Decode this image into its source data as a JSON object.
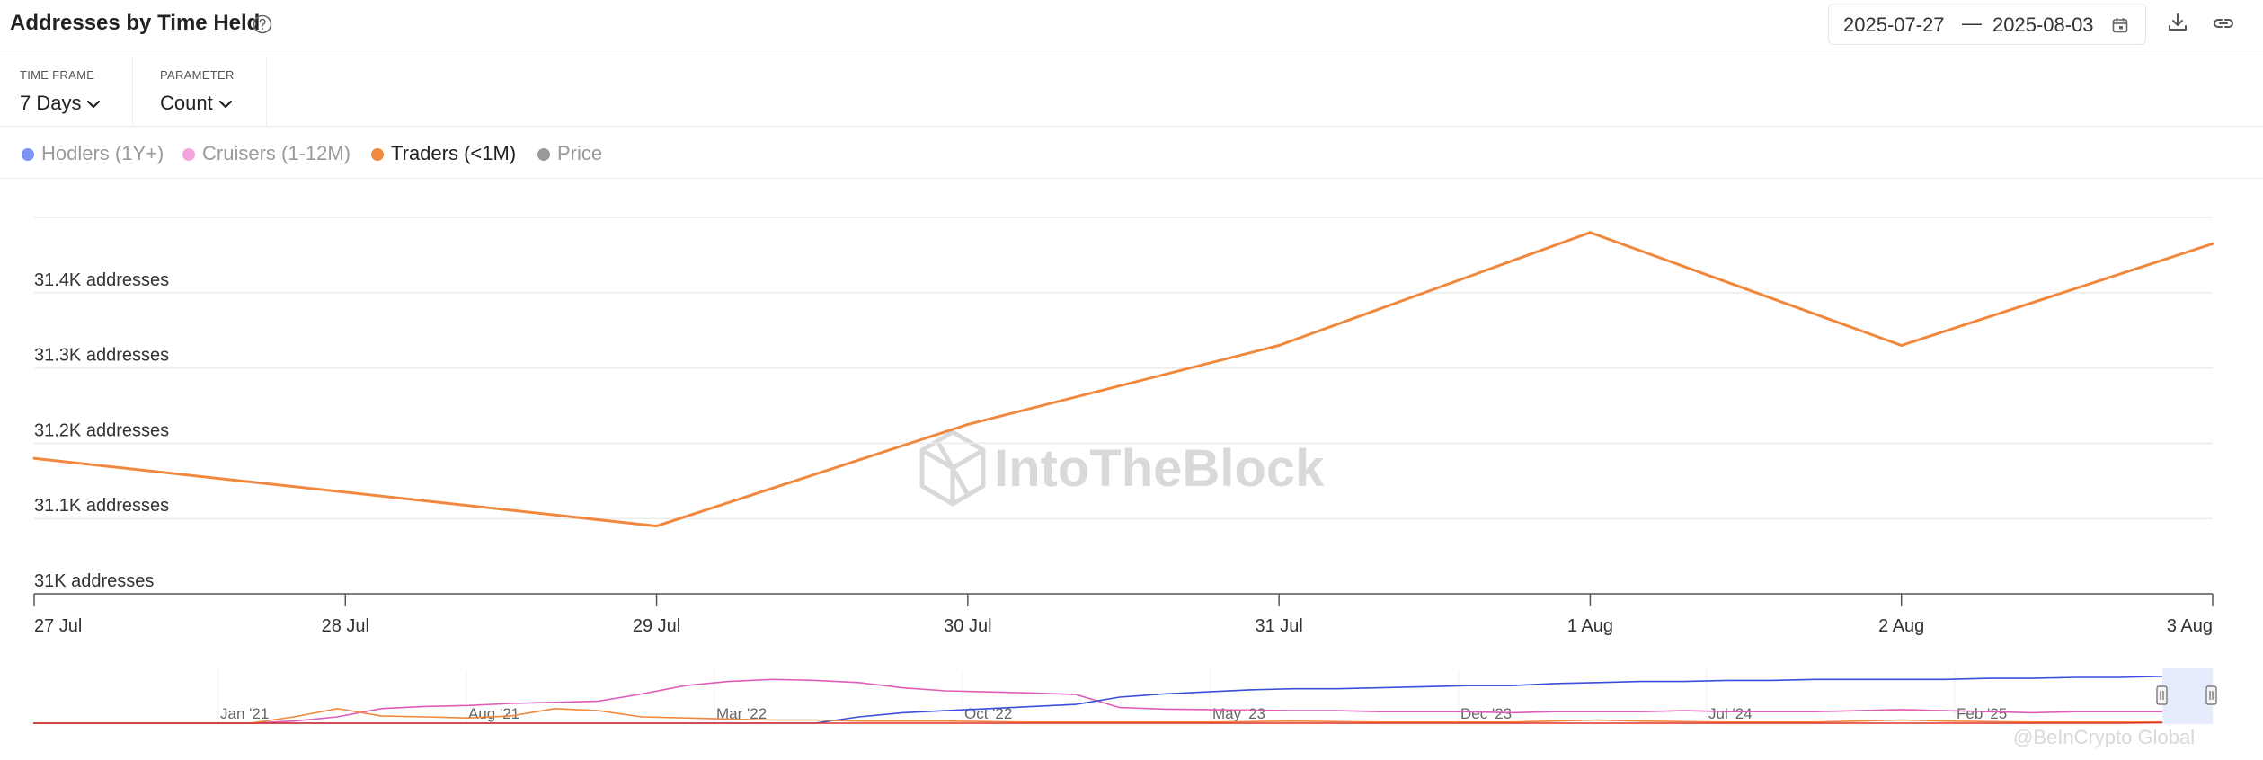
{
  "header": {
    "title": "Addresses by Time Held",
    "date_start": "2025-07-27",
    "date_separator": "—",
    "date_end": "2025-08-03"
  },
  "controls": {
    "time_frame_label": "TIME FRAME",
    "time_frame_value": "7 Days",
    "parameter_label": "PARAMETER",
    "parameter_value": "Count"
  },
  "legend": [
    {
      "label": "Hodlers (1Y+)",
      "color": "#7b93f5",
      "active": false
    },
    {
      "label": "Cruisers (1-12M)",
      "color": "#f2a5dc",
      "active": false
    },
    {
      "label": "Traders (<1M)",
      "color": "#f0883e",
      "active": true
    },
    {
      "label": "Price",
      "color": "#9a9a9a",
      "active": false
    }
  ],
  "watermark": "IntoTheBlock",
  "credit": "@BeInCrypto Global",
  "chart_data": {
    "type": "line",
    "title": "Addresses by Time Held",
    "x": [
      "27 Jul",
      "28 Jul",
      "29 Jul",
      "30 Jul",
      "31 Jul",
      "1 Aug",
      "2 Aug",
      "3 Aug"
    ],
    "series": [
      {
        "name": "Traders (<1M)",
        "color": "#f0883e",
        "points": [
          {
            "x": "27 Jul",
            "y": 31180
          },
          {
            "x": "29 Jul",
            "y": 31090
          },
          {
            "x": "30 Jul",
            "y": 31225
          },
          {
            "x": "31 Jul",
            "y": 31330
          },
          {
            "x": "1 Aug",
            "y": 31480
          },
          {
            "x": "2 Aug",
            "y": 31330
          },
          {
            "x": "3 Aug",
            "y": 31465
          }
        ]
      }
    ],
    "y_ticks": [
      {
        "value": 31000,
        "label": "31K addresses"
      },
      {
        "value": 31100,
        "label": "31.1K addresses"
      },
      {
        "value": 31200,
        "label": "31.2K addresses"
      },
      {
        "value": 31300,
        "label": "31.3K addresses"
      },
      {
        "value": 31400,
        "label": "31.4K addresses"
      }
    ],
    "ylim": [
      31000,
      31500
    ],
    "grid": true,
    "navigator": {
      "labels": [
        "Jan '21",
        "Aug '21",
        "Mar '22",
        "Oct '22",
        "May '23",
        "Dec '23",
        "Jul '24",
        "Feb '25"
      ],
      "series": [
        {
          "name": "Cruisers (1-12M)",
          "color": "#e05cb8",
          "values": [
            0,
            0,
            0,
            0,
            0,
            0,
            0.04,
            0.12,
            0.28,
            0.32,
            0.34,
            0.38,
            0.4,
            0.42,
            0.56,
            0.72,
            0.8,
            0.84,
            0.82,
            0.78,
            0.68,
            0.62,
            0.6,
            0.58,
            0.55,
            0.3,
            0.27,
            0.26,
            0.25,
            0.24,
            0.24,
            0.22,
            0.22,
            0.22,
            0.2,
            0.22,
            0.22,
            0.22,
            0.24,
            0.22,
            0.22,
            0.22,
            0.24,
            0.26,
            0.24,
            0.22,
            0.2,
            0.22,
            0.22,
            0.22
          ]
        },
        {
          "name": "Hodlers (1Y+)",
          "color": "#3a4fd8",
          "values": [
            0,
            0,
            0,
            0,
            0,
            0,
            0,
            0,
            0,
            0,
            0,
            0,
            0,
            0,
            0,
            0,
            0,
            0,
            0,
            0.12,
            0.2,
            0.24,
            0.28,
            0.32,
            0.36,
            0.5,
            0.56,
            0.6,
            0.64,
            0.66,
            0.66,
            0.68,
            0.7,
            0.72,
            0.72,
            0.76,
            0.78,
            0.8,
            0.8,
            0.82,
            0.82,
            0.84,
            0.84,
            0.84,
            0.84,
            0.86,
            0.86,
            0.88,
            0.88,
            0.9
          ]
        },
        {
          "name": "Traders (<1M)",
          "color": "#f0883e",
          "values": [
            0,
            0,
            0,
            0,
            0,
            0,
            0.12,
            0.28,
            0.14,
            0.12,
            0.1,
            0.14,
            0.28,
            0.24,
            0.12,
            0.1,
            0.08,
            0.06,
            0.06,
            0.04,
            0.04,
            0.04,
            0.03,
            0.02,
            0.02,
            0.02,
            0.02,
            0.02,
            0.03,
            0.04,
            0.03,
            0.02,
            0.02,
            0.02,
            0.02,
            0.04,
            0.06,
            0.04,
            0.03,
            0.02,
            0.02,
            0.02,
            0.04,
            0.06,
            0.04,
            0.03,
            0.02,
            0.02,
            0.02,
            0.02
          ]
        },
        {
          "name": "Price",
          "color": "#e0302a",
          "values": [
            0,
            0,
            0,
            0,
            0,
            0,
            0,
            0,
            0,
            0,
            0,
            0,
            0,
            0,
            0,
            0,
            0,
            0,
            0,
            0,
            0,
            0,
            0,
            0,
            0,
            0,
            0,
            0,
            0,
            0,
            0,
            0,
            0,
            0,
            0,
            0,
            0,
            0,
            0,
            0,
            0,
            0,
            0,
            0,
            0,
            0,
            0,
            0,
            0,
            0.01
          ]
        }
      ]
    }
  }
}
